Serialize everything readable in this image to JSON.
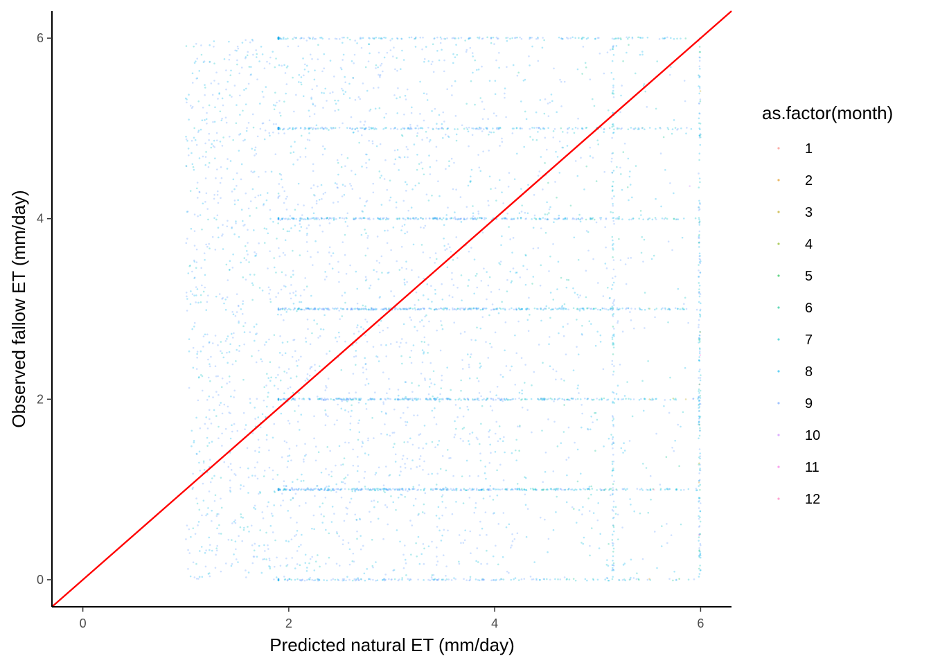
{
  "chart_data": {
    "type": "scatter",
    "xlabel": "Predicted natural ET (mm/day)",
    "ylabel": "Observed fallow ET (mm/day)",
    "xlim": [
      -0.3,
      6.3
    ],
    "ylim": [
      -0.3,
      6.3
    ],
    "x_ticks": [
      "0",
      "2",
      "4",
      "6"
    ],
    "y_ticks": [
      "0",
      "2",
      "4",
      "6"
    ],
    "grid": false,
    "legend_title": "as.factor(month)",
    "legend_position": "right",
    "point_alpha": 0.3,
    "series": [
      {
        "name": "1",
        "color": "#F8766D"
      },
      {
        "name": "2",
        "color": "#DE8C00"
      },
      {
        "name": "3",
        "color": "#B79F00"
      },
      {
        "name": "4",
        "color": "#7CAE00"
      },
      {
        "name": "5",
        "color": "#00BA38"
      },
      {
        "name": "6",
        "color": "#00C08B"
      },
      {
        "name": "7",
        "color": "#00BFC4"
      },
      {
        "name": "8",
        "color": "#00B4F0"
      },
      {
        "name": "9",
        "color": "#619CFF"
      },
      {
        "name": "10",
        "color": "#C77CFF"
      },
      {
        "name": "11",
        "color": "#F564E3"
      },
      {
        "name": "12",
        "color": "#FF64B0"
      }
    ],
    "reference_line": {
      "type": "identity",
      "slope": 1,
      "intercept": 0,
      "color": "#FF0000"
    },
    "x_bounds_of_data": [
      0,
      6
    ],
    "y_bounds_of_data": [
      0,
      6
    ],
    "y_bands": [
      0,
      1,
      2,
      3,
      4,
      5,
      6
    ]
  }
}
